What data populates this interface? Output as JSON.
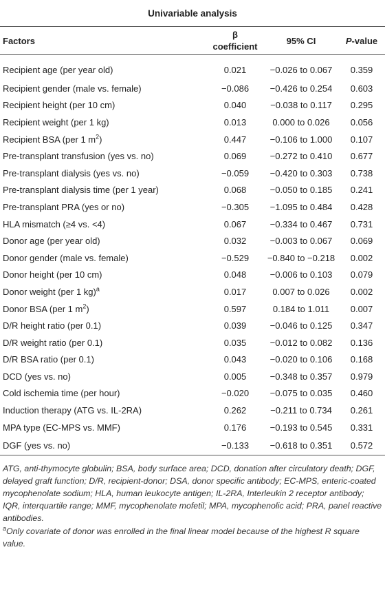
{
  "table": {
    "title": "Univariable analysis",
    "columns": [
      "Factors",
      "β coefficient",
      "95% CI",
      [
        {
          "i": "P"
        },
        "-value"
      ]
    ],
    "rows": [
      [
        "Recipient age (per year old)",
        "0.021",
        "−0.026 to 0.067",
        "0.359"
      ],
      [
        "Recipient gender (male vs. female)",
        "−0.086",
        "−0.426 to 0.254",
        "0.603"
      ],
      [
        "Recipient height (per 10 cm)",
        "0.040",
        "−0.038 to 0.117",
        "0.295"
      ],
      [
        "Recipient weight (per 1 kg)",
        "0.013",
        "0.000 to 0.026",
        "0.056"
      ],
      [
        [
          "Recipient BSA (per 1 m",
          {
            "sup": "2"
          },
          ")"
        ],
        "0.447",
        "−0.106 to 1.000",
        "0.107"
      ],
      [
        "Pre-transplant transfusion (yes vs. no)",
        "0.069",
        "−0.272 to 0.410",
        "0.677"
      ],
      [
        "Pre-transplant dialysis (yes vs. no)",
        "−0.059",
        "−0.420 to 0.303",
        "0.738"
      ],
      [
        "Pre-transplant dialysis time (per 1 year)",
        "0.068",
        "−0.050 to 0.185",
        "0.241"
      ],
      [
        "Pre-transplant PRA (yes or no)",
        "−0.305",
        "−1.095 to 0.484",
        "0.428"
      ],
      [
        "HLA mismatch (≥4 vs. <4)",
        "0.067",
        "−0.334 to 0.467",
        "0.731"
      ],
      [
        "Donor age (per year old)",
        "0.032",
        "−0.003 to 0.067",
        "0.069"
      ],
      [
        "Donor gender (male vs. female)",
        "−0.529",
        "−0.840 to −0.218",
        "0.002"
      ],
      [
        "Donor height (per 10 cm)",
        "0.048",
        "−0.006 to 0.103",
        "0.079"
      ],
      [
        [
          "Donor weight (per 1 kg)",
          {
            "sup": "a"
          }
        ],
        "0.017",
        "0.007 to 0.026",
        "0.002"
      ],
      [
        [
          "Donor BSA (per 1 m",
          {
            "sup": "2"
          },
          ")"
        ],
        "0.597",
        "0.184 to 1.011",
        "0.007"
      ],
      [
        "D/R height ratio (per 0.1)",
        "0.039",
        "−0.046 to 0.125",
        "0.347"
      ],
      [
        "D/R weight ratio (per 0.1)",
        "0.035",
        "−0.012 to 0.082",
        "0.136"
      ],
      [
        "D/R BSA ratio (per 0.1)",
        "0.043",
        "−0.020 to 0.106",
        "0.168"
      ],
      [
        "DCD (yes vs. no)",
        "0.005",
        "−0.348 to 0.357",
        "0.979"
      ],
      [
        "Cold ischemia time (per hour)",
        "−0.020",
        "−0.075 to 0.035",
        "0.460"
      ],
      [
        "Induction therapy (ATG vs. IL-2RA)",
        "0.262",
        "−0.211 to 0.734",
        "0.261"
      ],
      [
        "MPA type (EC-MPS vs. MMF)",
        "0.176",
        "−0.193 to 0.545",
        "0.331"
      ],
      [
        "DGF (yes vs. no)",
        "−0.133",
        "−0.618 to 0.351",
        "0.572"
      ]
    ],
    "notes": [
      "ATG, anti-thymocyte globulin; BSA, body surface area; DCD, donation after circulatory death; DGF, delayed graft function; D/R, recipient-donor; DSA, donor specific antibody; EC-MPS, enteric-coated mycophenolate sodium; HLA, human leukocyte antigen; IL-2RA, Interleukin 2 receptor antibody; IQR, interquartile range; MMF, mycophenolate mofetil; MPA, mycophenolic acid; PRA, panel reactive antibodies.",
      [
        {
          "sup": "a"
        },
        "Only covariate of donor was enrolled in the final linear model because of the highest R square value."
      ]
    ]
  }
}
